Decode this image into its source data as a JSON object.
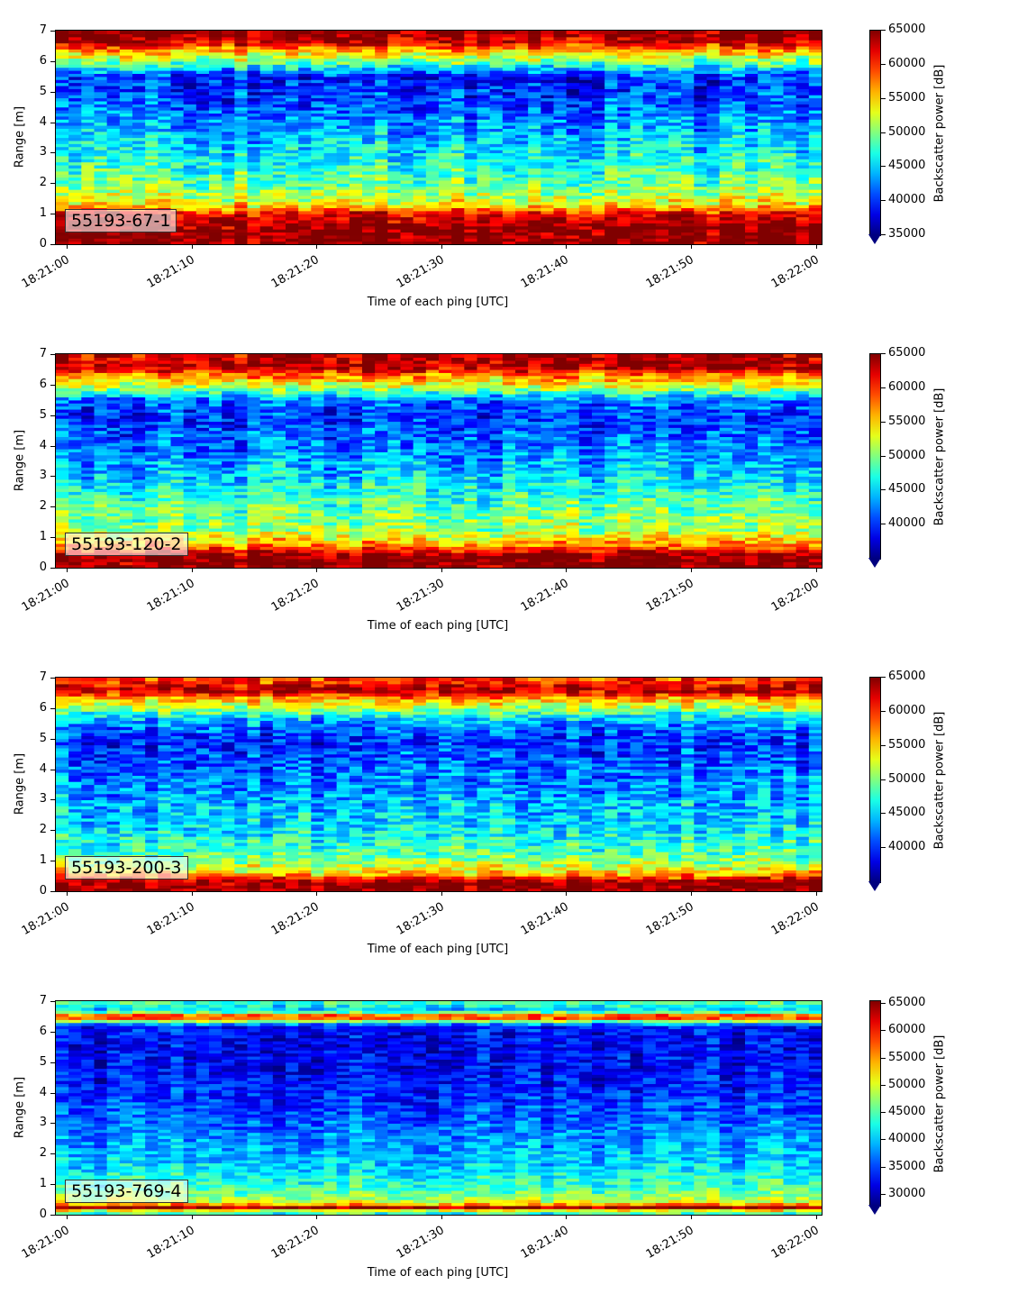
{
  "chart_data": [
    {
      "type": "heatmap",
      "station_label": "55193-67-1",
      "xlabel": "Time of each ping [UTC]",
      "ylabel": "Range [m]",
      "colorbar_label": "Backscatter power [dB]",
      "colormap": "jet",
      "xlim": [
        "18:21:00",
        "18:22:00"
      ],
      "ylim": [
        0,
        7
      ],
      "x_ticks": [
        "18:21:00",
        "18:21:10",
        "18:21:20",
        "18:21:30",
        "18:21:40",
        "18:21:50",
        "18:22:00"
      ],
      "y_ticks": [
        0,
        1,
        2,
        3,
        4,
        5,
        6,
        7
      ],
      "clim": [
        35000,
        65000
      ],
      "colorbar_ticks": [
        35000,
        40000,
        45000,
        50000,
        55000,
        60000,
        65000
      ],
      "colorbar_extend": "min",
      "range_profile": [
        {
          "range": 0.1,
          "value": 65000
        },
        {
          "range": 0.5,
          "value": 65000
        },
        {
          "range": 1.0,
          "value": 62000
        },
        {
          "range": 1.3,
          "value": 54000
        },
        {
          "range": 2.0,
          "value": 49000
        },
        {
          "range": 3.0,
          "value": 46000
        },
        {
          "range": 4.0,
          "value": 43000
        },
        {
          "range": 5.0,
          "value": 40000
        },
        {
          "range": 5.5,
          "value": 39500
        },
        {
          "range": 6.0,
          "value": 50000
        },
        {
          "range": 6.3,
          "value": 55000
        },
        {
          "range": 6.6,
          "value": 62000
        },
        {
          "range": 6.9,
          "value": 65000
        }
      ]
    },
    {
      "type": "heatmap",
      "station_label": "55193-120-2",
      "xlabel": "Time of each ping [UTC]",
      "ylabel": "Range [m]",
      "colorbar_label": "Backscatter power [dB]",
      "colormap": "jet",
      "xlim": [
        "18:21:00",
        "18:22:00"
      ],
      "ylim": [
        0,
        7
      ],
      "x_ticks": [
        "18:21:00",
        "18:21:10",
        "18:21:20",
        "18:21:30",
        "18:21:40",
        "18:21:50",
        "18:22:00"
      ],
      "y_ticks": [
        0,
        1,
        2,
        3,
        4,
        5,
        6,
        7
      ],
      "clim": [
        35000,
        65000
      ],
      "colorbar_ticks": [
        40000,
        45000,
        50000,
        55000,
        60000,
        65000
      ],
      "colorbar_extend": "min",
      "range_profile": [
        {
          "range": 0.1,
          "value": 65000
        },
        {
          "range": 0.4,
          "value": 65000
        },
        {
          "range": 0.7,
          "value": 58000
        },
        {
          "range": 1.2,
          "value": 51000
        },
        {
          "range": 2.0,
          "value": 49000
        },
        {
          "range": 3.0,
          "value": 45000
        },
        {
          "range": 4.0,
          "value": 42000
        },
        {
          "range": 5.0,
          "value": 40000
        },
        {
          "range": 5.5,
          "value": 42000
        },
        {
          "range": 6.0,
          "value": 53000
        },
        {
          "range": 6.3,
          "value": 57000
        },
        {
          "range": 6.6,
          "value": 64000
        },
        {
          "range": 6.9,
          "value": 63000
        }
      ]
    },
    {
      "type": "heatmap",
      "station_label": "55193-200-3",
      "xlabel": "Time of each ping [UTC]",
      "ylabel": "Range [m]",
      "colorbar_label": "Backscatter power [dB]",
      "colormap": "jet",
      "xlim": [
        "18:21:00",
        "18:22:00"
      ],
      "ylim": [
        0,
        7
      ],
      "x_ticks": [
        "18:21:00",
        "18:21:10",
        "18:21:20",
        "18:21:30",
        "18:21:40",
        "18:21:50",
        "18:22:00"
      ],
      "y_ticks": [
        0,
        1,
        2,
        3,
        4,
        5,
        6,
        7
      ],
      "clim": [
        35000,
        65000
      ],
      "colorbar_ticks": [
        40000,
        45000,
        50000,
        55000,
        60000,
        65000
      ],
      "colorbar_extend": "min",
      "range_profile": [
        {
          "range": 0.1,
          "value": 65000
        },
        {
          "range": 0.35,
          "value": 64000
        },
        {
          "range": 0.6,
          "value": 55000
        },
        {
          "range": 1.2,
          "value": 49000
        },
        {
          "range": 2.0,
          "value": 46000
        },
        {
          "range": 3.0,
          "value": 44000
        },
        {
          "range": 4.0,
          "value": 42000
        },
        {
          "range": 5.0,
          "value": 40000
        },
        {
          "range": 5.6,
          "value": 44000
        },
        {
          "range": 6.0,
          "value": 51000
        },
        {
          "range": 6.3,
          "value": 56000
        },
        {
          "range": 6.6,
          "value": 64000
        },
        {
          "range": 6.9,
          "value": 60000
        }
      ]
    },
    {
      "type": "heatmap",
      "station_label": "55193-769-4",
      "xlabel": "Time of each ping [UTC]",
      "ylabel": "Range [m]",
      "colorbar_label": "Backscatter power [dB]",
      "colormap": "jet",
      "xlim": [
        "18:21:00",
        "18:22:00"
      ],
      "ylim": [
        0,
        7
      ],
      "x_ticks": [
        "18:21:00",
        "18:21:10",
        "18:21:20",
        "18:21:30",
        "18:21:40",
        "18:21:50",
        "18:22:00"
      ],
      "y_ticks": [
        0,
        1,
        2,
        3,
        4,
        5,
        6,
        7
      ],
      "clim": [
        28000,
        65500
      ],
      "colorbar_ticks": [
        30000,
        35000,
        40000,
        45000,
        50000,
        55000,
        60000,
        65000
      ],
      "colorbar_extend": "min",
      "range_profile": [
        {
          "range": 0.1,
          "value": 44000
        },
        {
          "range": 0.25,
          "value": 65000
        },
        {
          "range": 0.4,
          "value": 50000
        },
        {
          "range": 0.8,
          "value": 45000
        },
        {
          "range": 1.5,
          "value": 41000
        },
        {
          "range": 2.5,
          "value": 38000
        },
        {
          "range": 3.5,
          "value": 35000
        },
        {
          "range": 4.5,
          "value": 33000
        },
        {
          "range": 5.5,
          "value": 32000
        },
        {
          "range": 6.2,
          "value": 33000
        },
        {
          "range": 6.5,
          "value": 62000
        },
        {
          "range": 6.7,
          "value": 40000
        },
        {
          "range": 6.95,
          "value": 44000
        }
      ]
    }
  ]
}
